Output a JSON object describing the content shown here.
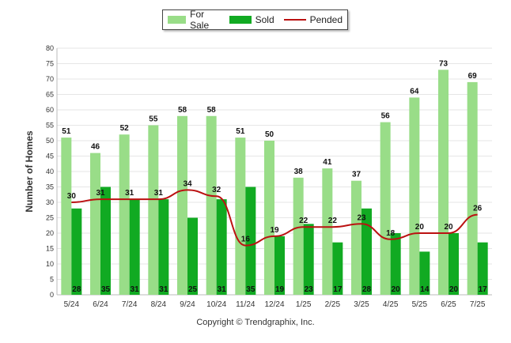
{
  "chart_data": {
    "type": "bar",
    "categories": [
      "5/24",
      "6/24",
      "7/24",
      "8/24",
      "9/24",
      "10/24",
      "11/24",
      "12/24",
      "1/25",
      "2/25",
      "3/25",
      "4/25",
      "5/25",
      "6/25",
      "7/25"
    ],
    "series": [
      {
        "name": "For Sale",
        "type": "bar",
        "color": "#99dd88",
        "values": [
          51,
          46,
          52,
          55,
          58,
          58,
          51,
          50,
          38,
          41,
          37,
          56,
          64,
          73,
          69
        ]
      },
      {
        "name": "Sold",
        "type": "bar",
        "color": "#11aa22",
        "values": [
          28,
          35,
          31,
          31,
          25,
          31,
          35,
          19,
          23,
          17,
          28,
          20,
          14,
          20,
          17
        ]
      },
      {
        "name": "Pended",
        "type": "line",
        "color": "#bb1111",
        "values": [
          30,
          31,
          31,
          31,
          34,
          32,
          16,
          19,
          22,
          22,
          23,
          18,
          20,
          20,
          26
        ]
      }
    ],
    "ylabel": "Number of Homes",
    "xlabel": "",
    "ylim": [
      0,
      80
    ],
    "yticks": [
      0,
      5,
      10,
      15,
      20,
      25,
      30,
      35,
      40,
      45,
      50,
      55,
      60,
      65,
      70,
      75,
      80
    ],
    "grid": true,
    "legend_position": "top-center"
  },
  "footer": {
    "copyright": "Copyright © Trendgraphix, Inc."
  }
}
